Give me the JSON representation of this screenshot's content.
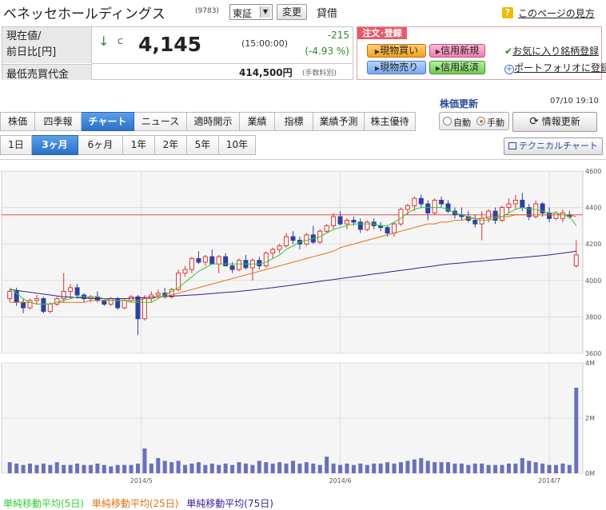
{
  "header": {
    "company_name": "ベネッセホールディングス",
    "code": "(9783)",
    "market": "東証",
    "change_button": "変更",
    "lending": "貸借",
    "help_icon": "?",
    "help_link": "このページの見方"
  },
  "price": {
    "label_current": "現在値/",
    "label_prev": "前日比[円]",
    "direction": "↓",
    "mark": "C",
    "value": "4,145",
    "time": "(15:00:00)",
    "change": "-215",
    "change_pct": "(-4.93 %)",
    "label_min_buy": "最低売買代金",
    "min_buy": "414,500円",
    "min_buy_note": "(手数料別)",
    "colors": {
      "change": "#2a8a2a"
    }
  },
  "order": {
    "header": "注文･登録",
    "buy": "現物買い",
    "sell": "現物売り",
    "margin_new": "信用新規",
    "margin_return": "信用返済",
    "favorite": "お気に入り銘柄登録",
    "portfolio": "ポートフォリオに登録",
    "icons": {
      "favorite": "check-icon",
      "portfolio": "plus-circle-icon"
    }
  },
  "update": {
    "label": "株価更新",
    "time": "07/10 19:10",
    "auto": "自動",
    "manual": "手動",
    "selected": "manual",
    "refresh": "情報更新"
  },
  "tabs": {
    "items": [
      "株価",
      "四季報",
      "チャート",
      "ニュース",
      "適時開示",
      "業績",
      "指標",
      "業績予測",
      "株主優待"
    ],
    "active": 2
  },
  "periods": {
    "items": [
      "1日",
      "3ヶ月",
      "6ヶ月",
      "1年",
      "2年",
      "5年",
      "10年"
    ],
    "active": 1
  },
  "technical_button": "テクニカルチャート",
  "legend": {
    "ma5": "単純移動平均(5日)",
    "ma25": "単純移動平均(25日)",
    "ma75": "単純移動平均(75日)",
    "colors": {
      "ma5": "#33cc33",
      "ma25": "#e07010",
      "ma75": "#3a1a9a"
    }
  },
  "chart_data": [
    {
      "type": "candlestick",
      "ylim": [
        3600,
        4600
      ],
      "yticks": [
        "4600",
        "4400",
        "4200",
        "4000",
        "3800",
        "3600"
      ],
      "reference_line": 4360,
      "colors": {
        "up": "#e03030",
        "down": "#3040a0",
        "ref": "#e05050"
      },
      "ohlc": [
        [
          3900,
          3950,
          3880,
          3940
        ],
        [
          3940,
          3960,
          3860,
          3880
        ],
        [
          3880,
          3900,
          3820,
          3850
        ],
        [
          3850,
          3900,
          3840,
          3890
        ],
        [
          3890,
          3920,
          3870,
          3900
        ],
        [
          3900,
          3910,
          3820,
          3830
        ],
        [
          3830,
          3880,
          3820,
          3870
        ],
        [
          3870,
          3910,
          3860,
          3900
        ],
        [
          3900,
          4040,
          3880,
          3940
        ],
        [
          3940,
          3980,
          3900,
          3960
        ],
        [
          3960,
          3980,
          3900,
          3920
        ],
        [
          3920,
          3930,
          3880,
          3900
        ],
        [
          3900,
          3920,
          3880,
          3910
        ],
        [
          3910,
          3940,
          3880,
          3890
        ],
        [
          3890,
          3900,
          3860,
          3870
        ],
        [
          3870,
          3910,
          3860,
          3900
        ],
        [
          3900,
          3910,
          3840,
          3850
        ],
        [
          3850,
          3900,
          3840,
          3890
        ],
        [
          3890,
          3920,
          3880,
          3910
        ],
        [
          3910,
          3920,
          3700,
          3790
        ],
        [
          3790,
          3920,
          3780,
          3900
        ],
        [
          3900,
          3940,
          3880,
          3920
        ],
        [
          3920,
          3950,
          3900,
          3930
        ],
        [
          3930,
          3960,
          3900,
          3910
        ],
        [
          3910,
          3960,
          3900,
          3950
        ],
        [
          3950,
          4060,
          3940,
          4040
        ],
        [
          4040,
          4080,
          4020,
          4060
        ],
        [
          4060,
          4130,
          4040,
          4120
        ],
        [
          4120,
          4160,
          4090,
          4100
        ],
        [
          4100,
          4140,
          4080,
          4130
        ],
        [
          4130,
          4170,
          4100,
          4090
        ],
        [
          4090,
          4140,
          4040,
          4130
        ],
        [
          4130,
          4150,
          4080,
          4080
        ],
        [
          4080,
          4100,
          4040,
          4060
        ],
        [
          4060,
          4120,
          4050,
          4110
        ],
        [
          4110,
          4140,
          4060,
          4070
        ],
        [
          4070,
          4120,
          4000,
          4110
        ],
        [
          4110,
          4130,
          4060,
          4080
        ],
        [
          4080,
          4160,
          4070,
          4150
        ],
        [
          4150,
          4180,
          4120,
          4170
        ],
        [
          4170,
          4200,
          4150,
          4190
        ],
        [
          4190,
          4260,
          4180,
          4240
        ],
        [
          4240,
          4270,
          4200,
          4220
        ],
        [
          4220,
          4240,
          4170,
          4200
        ],
        [
          4200,
          4260,
          4190,
          4250
        ],
        [
          4250,
          4300,
          4200,
          4210
        ],
        [
          4210,
          4280,
          4200,
          4270
        ],
        [
          4270,
          4310,
          4260,
          4300
        ],
        [
          4300,
          4370,
          4280,
          4350
        ],
        [
          4350,
          4380,
          4300,
          4310
        ],
        [
          4310,
          4340,
          4280,
          4330
        ],
        [
          4330,
          4350,
          4300,
          4320
        ],
        [
          4320,
          4340,
          4260,
          4280
        ],
        [
          4280,
          4330,
          4270,
          4320
        ],
        [
          4320,
          4340,
          4280,
          4300
        ],
        [
          4300,
          4320,
          4270,
          4290
        ],
        [
          4290,
          4300,
          4240,
          4260
        ],
        [
          4260,
          4320,
          4240,
          4310
        ],
        [
          4310,
          4400,
          4300,
          4390
        ],
        [
          4390,
          4420,
          4360,
          4410
        ],
        [
          4410,
          4460,
          4380,
          4450
        ],
        [
          4450,
          4470,
          4400,
          4420
        ],
        [
          4420,
          4440,
          4330,
          4370
        ],
        [
          4370,
          4450,
          4360,
          4440
        ],
        [
          4440,
          4460,
          4400,
          4420
        ],
        [
          4420,
          4440,
          4370,
          4380
        ],
        [
          4380,
          4400,
          4340,
          4360
        ],
        [
          4360,
          4400,
          4330,
          4350
        ],
        [
          4350,
          4380,
          4320,
          4330
        ],
        [
          4330,
          4360,
          4290,
          4310
        ],
        [
          4310,
          4380,
          4220,
          4340
        ],
        [
          4340,
          4390,
          4320,
          4380
        ],
        [
          4380,
          4400,
          4310,
          4330
        ],
        [
          4330,
          4410,
          4320,
          4400
        ],
        [
          4400,
          4450,
          4370,
          4420
        ],
        [
          4420,
          4470,
          4390,
          4440
        ],
        [
          4440,
          4480,
          4380,
          4400
        ],
        [
          4400,
          4420,
          4330,
          4350
        ],
        [
          4350,
          4440,
          4340,
          4420
        ],
        [
          4420,
          4430,
          4350,
          4370
        ],
        [
          4370,
          4400,
          4320,
          4340
        ],
        [
          4340,
          4380,
          4330,
          4370
        ],
        [
          4340,
          4390,
          4320,
          4370
        ],
        [
          4360,
          4380,
          4340,
          4350
        ],
        [
          4080,
          4220,
          4070,
          4140
        ]
      ],
      "ma5": [
        3960,
        3930,
        3900,
        3880,
        3870,
        3870,
        3870,
        3880,
        3890,
        3900,
        3910,
        3910,
        3910,
        3910,
        3900,
        3890,
        3890,
        3890,
        3880,
        3880,
        3880,
        3880,
        3900,
        3920,
        3940,
        3960,
        3990,
        4020,
        4050,
        4070,
        4090,
        4090,
        4090,
        4090,
        4090,
        4090,
        4090,
        4090,
        4100,
        4120,
        4140,
        4170,
        4190,
        4210,
        4220,
        4230,
        4240,
        4260,
        4280,
        4290,
        4300,
        4310,
        4310,
        4310,
        4310,
        4300,
        4300,
        4320,
        4340,
        4370,
        4390,
        4400,
        4400,
        4400,
        4400,
        4390,
        4370,
        4360,
        4350,
        4340,
        4330,
        4330,
        4340,
        4350,
        4370,
        4390,
        4400,
        4390,
        4390,
        4380,
        4370,
        4370,
        4360,
        4350,
        4300
      ],
      "ma25": [
        3880,
        3880,
        3880,
        3880,
        3870,
        3870,
        3870,
        3880,
        3880,
        3880,
        3880,
        3880,
        3890,
        3890,
        3890,
        3890,
        3890,
        3890,
        3890,
        3890,
        3900,
        3900,
        3910,
        3910,
        3920,
        3930,
        3940,
        3950,
        3960,
        3970,
        3980,
        3990,
        4000,
        4010,
        4020,
        4030,
        4040,
        4050,
        4060,
        4070,
        4080,
        4090,
        4100,
        4110,
        4120,
        4130,
        4140,
        4150,
        4160,
        4180,
        4190,
        4200,
        4210,
        4220,
        4230,
        4240,
        4250,
        4260,
        4270,
        4280,
        4290,
        4300,
        4310,
        4310,
        4320,
        4320,
        4330,
        4330,
        4340,
        4340,
        4340,
        4350,
        4350,
        4350,
        4350,
        4360,
        4360,
        4360,
        4360,
        4360,
        4360,
        4360,
        4360,
        4360,
        4350
      ],
      "ma75": [
        3950,
        3945,
        3940,
        3935,
        3930,
        3925,
        3920,
        3915,
        3910,
        3908,
        3906,
        3904,
        3902,
        3900,
        3900,
        3900,
        3900,
        3900,
        3902,
        3904,
        3906,
        3908,
        3910,
        3912,
        3914,
        3916,
        3918,
        3920,
        3922,
        3925,
        3928,
        3931,
        3934,
        3937,
        3940,
        3944,
        3948,
        3952,
        3956,
        3960,
        3965,
        3970,
        3975,
        3980,
        3985,
        3990,
        3995,
        4000,
        4005,
        4010,
        4015,
        4020,
        4025,
        4030,
        4035,
        4040,
        4045,
        4050,
        4055,
        4060,
        4065,
        4070,
        4075,
        4080,
        4085,
        4090,
        4093,
        4096,
        4100,
        4103,
        4106,
        4110,
        4113,
        4116,
        4120,
        4123,
        4126,
        4130,
        4133,
        4136,
        4140,
        4145,
        4150,
        4155,
        4160
      ]
    },
    {
      "type": "bar",
      "ylim": [
        0,
        4
      ],
      "yticks": [
        "4M",
        "2M",
        "0M"
      ],
      "xticks": [
        "2014/5",
        "2014/6",
        "2014/7"
      ],
      "values": [
        0.4,
        0.35,
        0.3,
        0.35,
        0.3,
        0.35,
        0.3,
        0.4,
        0.3,
        0.3,
        0.35,
        0.3,
        0.3,
        0.35,
        0.3,
        0.25,
        0.3,
        0.3,
        0.3,
        0.35,
        0.9,
        0.35,
        0.55,
        0.45,
        0.4,
        0.45,
        0.3,
        0.35,
        0.4,
        0.3,
        0.35,
        0.3,
        0.35,
        0.3,
        0.4,
        0.35,
        0.3,
        0.45,
        0.4,
        0.35,
        0.4,
        0.35,
        0.45,
        0.35,
        0.4,
        0.35,
        0.3,
        0.6,
        0.35,
        0.3,
        0.35,
        0.3,
        0.35,
        0.3,
        0.35,
        0.35,
        0.4,
        0.35,
        0.4,
        0.45,
        0.5,
        0.55,
        0.45,
        0.4,
        0.4,
        0.4,
        0.35,
        0.35,
        0.3,
        0.35,
        0.35,
        0.3,
        0.3,
        0.3,
        0.35,
        0.35,
        0.55,
        0.45,
        0.4,
        0.35,
        0.3,
        0.3,
        0.35,
        0.3,
        3.1
      ],
      "color": "#6a70b8"
    }
  ]
}
